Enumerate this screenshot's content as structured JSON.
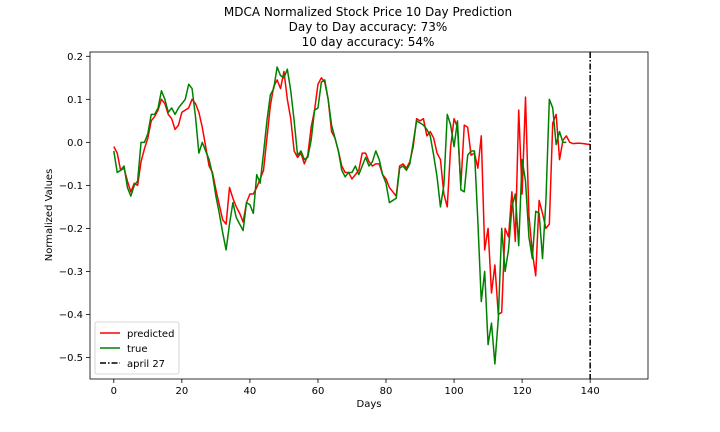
{
  "chart_data": {
    "type": "line",
    "title": [
      "MDCA Normalized Stock Price 10 Day Prediction",
      "Day to Day accuracy: 73%",
      "10 day accuracy: 54%"
    ],
    "xlabel": "Days",
    "ylabel": "Normalized Values",
    "xlim": [
      -7,
      157
    ],
    "ylim": [
      -0.55,
      0.21
    ],
    "xticks": [
      0,
      20,
      40,
      60,
      80,
      100,
      120,
      140
    ],
    "yticks": [
      0.2,
      0.1,
      0.0,
      -0.1,
      -0.2,
      -0.3,
      -0.4,
      -0.5
    ],
    "ytick_labels": [
      "0.2",
      "0.1",
      "0.0",
      "−0.1",
      "−0.2",
      "−0.3",
      "−0.4",
      "−0.5"
    ],
    "grid": false,
    "legend_position": "lower-left",
    "series": [
      {
        "name": "predicted",
        "color": "#ff0000",
        "values": [
          -0.01,
          -0.025,
          -0.065,
          -0.06,
          -0.09,
          -0.115,
          -0.095,
          -0.1,
          -0.045,
          -0.015,
          0.01,
          0.05,
          0.06,
          0.075,
          0.1,
          0.09,
          0.065,
          0.055,
          0.03,
          0.04,
          0.07,
          0.075,
          0.08,
          0.1,
          0.09,
          0.07,
          0.035,
          -0.01,
          -0.055,
          -0.07,
          -0.11,
          -0.145,
          -0.18,
          -0.19,
          -0.105,
          -0.13,
          -0.15,
          -0.165,
          -0.185,
          -0.14,
          -0.12,
          -0.12,
          -0.105,
          -0.085,
          -0.065,
          0.01,
          0.085,
          0.13,
          0.145,
          0.125,
          0.165,
          0.1,
          0.055,
          -0.02,
          -0.035,
          -0.025,
          -0.05,
          -0.03,
          0.035,
          0.075,
          0.135,
          0.15,
          0.14,
          0.1,
          0.025,
          0.01,
          -0.02,
          -0.055,
          -0.07,
          -0.07,
          -0.085,
          -0.075,
          -0.065,
          -0.025,
          -0.025,
          -0.045,
          -0.055,
          -0.05,
          -0.05,
          -0.075,
          -0.085,
          -0.105,
          -0.115,
          -0.125,
          -0.055,
          -0.05,
          -0.06,
          -0.045,
          -0.01,
          0.055,
          0.05,
          0.055,
          0.015,
          0.025,
          0.01,
          -0.025,
          -0.04,
          -0.12,
          -0.15,
          -0.01,
          0.055,
          0.035,
          -0.1,
          0.04,
          0.035,
          -0.03,
          -0.025,
          -0.06,
          0.015,
          -0.25,
          -0.2,
          -0.35,
          -0.285,
          -0.4,
          -0.395,
          -0.2,
          -0.22,
          -0.115,
          -0.23,
          0.075,
          -0.12,
          0.105,
          -0.17,
          -0.255,
          -0.31,
          -0.135,
          -0.165,
          -0.2,
          -0.19,
          0.045,
          0.065,
          -0.04,
          0.005,
          0.015,
          0.0,
          -0.003,
          -0.002,
          -0.002,
          -0.003,
          -0.004,
          -0.005
        ]
      },
      {
        "name": "true",
        "color": "#008000",
        "values": [
          -0.02,
          -0.07,
          -0.065,
          -0.055,
          -0.105,
          -0.125,
          -0.1,
          -0.09,
          0.0,
          0.0,
          0.02,
          0.065,
          0.065,
          0.08,
          0.12,
          0.1,
          0.07,
          0.08,
          0.065,
          0.08,
          0.09,
          0.1,
          0.135,
          0.125,
          0.06,
          -0.025,
          0.0,
          -0.02,
          -0.04,
          -0.075,
          -0.125,
          -0.165,
          -0.21,
          -0.25,
          -0.19,
          -0.14,
          -0.175,
          -0.19,
          -0.205,
          -0.14,
          -0.145,
          -0.165,
          -0.075,
          -0.095,
          -0.025,
          0.05,
          0.11,
          0.125,
          0.175,
          0.155,
          0.15,
          0.17,
          0.12,
          0.05,
          -0.03,
          -0.02,
          -0.04,
          -0.035,
          0.005,
          0.075,
          0.08,
          0.14,
          0.145,
          0.1,
          0.04,
          0.01,
          -0.02,
          -0.065,
          -0.08,
          -0.07,
          -0.07,
          -0.055,
          -0.075,
          -0.055,
          -0.035,
          -0.055,
          -0.045,
          -0.02,
          -0.04,
          -0.075,
          -0.095,
          -0.14,
          -0.135,
          -0.13,
          -0.06,
          -0.055,
          -0.065,
          -0.05,
          0.0,
          0.05,
          0.045,
          0.04,
          0.03,
          0.015,
          -0.03,
          -0.08,
          -0.15,
          -0.1,
          0.065,
          0.04,
          -0.01,
          0.05,
          -0.11,
          -0.115,
          -0.03,
          -0.02,
          -0.02,
          -0.185,
          -0.37,
          -0.3,
          -0.47,
          -0.42,
          -0.515,
          -0.41,
          -0.2,
          -0.3,
          -0.25,
          -0.15,
          -0.12,
          -0.24,
          -0.04,
          -0.09,
          -0.22,
          -0.27,
          -0.16,
          -0.165,
          -0.27,
          -0.135,
          0.1,
          0.08,
          -0.005,
          0.025,
          0.0,
          0.0
        ]
      }
    ],
    "vline": {
      "name": "april 27",
      "x": 140,
      "color": "#000000",
      "style": "dashdot"
    }
  }
}
